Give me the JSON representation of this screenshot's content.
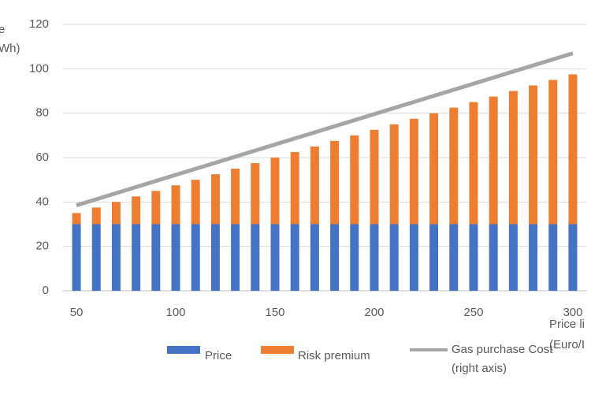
{
  "chart_data": {
    "type": "bar",
    "stacked": true,
    "y_label_lines": [
      "e",
      "Wh)"
    ],
    "x_label_lines": [
      "Price li",
      "(Euro/I"
    ],
    "x": [
      50,
      60,
      70,
      80,
      90,
      100,
      110,
      120,
      130,
      140,
      150,
      160,
      170,
      180,
      190,
      200,
      210,
      220,
      230,
      240,
      250,
      260,
      270,
      280,
      290,
      300
    ],
    "series": [
      {
        "name": "Price",
        "color": "#4472c4",
        "values": [
          30,
          30,
          30,
          30,
          30,
          30,
          30,
          30,
          30,
          30,
          30,
          30,
          30,
          30,
          30,
          30,
          30,
          30,
          30,
          30,
          30,
          30,
          30,
          30,
          30,
          30
        ]
      },
      {
        "name": "Risk premium",
        "color": "#ed7d31",
        "values": [
          5,
          7.5,
          10,
          12.5,
          15,
          17.5,
          20,
          22.5,
          25,
          27.5,
          30,
          32.5,
          35,
          37.5,
          40,
          42.5,
          45,
          47.5,
          50,
          52.5,
          55,
          57.5,
          60,
          62.5,
          65,
          67.5
        ]
      },
      {
        "name": "Gas purchase Cost (right axis)",
        "type": "line",
        "color": "#a5a5a5",
        "x": [
          50,
          300
        ],
        "values": [
          38.5,
          107
        ]
      }
    ],
    "xlim": [
      43,
      307
    ],
    "xticks": [
      50,
      100,
      150,
      200,
      250,
      300
    ],
    "ylim": [
      0,
      120
    ],
    "yticks": [
      0,
      20,
      40,
      60,
      80,
      100,
      120
    ],
    "grid": true
  }
}
